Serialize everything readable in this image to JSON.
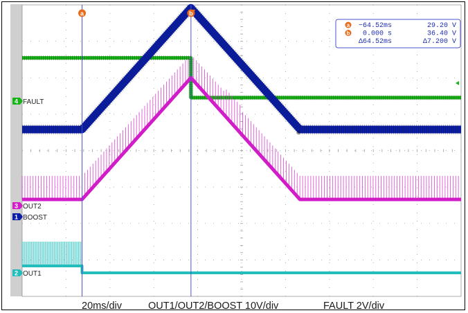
{
  "chart_data": {
    "type": "line",
    "title": "",
    "x_unit": "ms",
    "xlim": [
      -100,
      160
    ],
    "cursors": [
      {
        "marker": "a",
        "x": -64.52,
        "color": "#ea6a1c"
      },
      {
        "marker": "b",
        "x": 0.0,
        "color": "#ea6a1c"
      }
    ],
    "readout": {
      "rows": [
        {
          "marker": "a",
          "time": "−64.52ms",
          "value": "29.20 V"
        },
        {
          "marker": "b",
          "time": "0.000 s",
          "value": "36.40 V"
        },
        {
          "marker": "",
          "time": "Δ64.52ms",
          "value": "Δ7.200 V"
        }
      ]
    },
    "series": [
      {
        "name": "FAULT",
        "channel": "4",
        "color": "#17b417",
        "unit": "V",
        "x": [
          -100,
          0,
          0,
          160
        ],
        "y": [
          6.6,
          6.6,
          0,
          0
        ]
      },
      {
        "name": "BOOST",
        "channel": "1",
        "color": "#0b1ea8",
        "unit": "V",
        "x": [
          -100,
          -64.52,
          0,
          64.52,
          100,
          160
        ],
        "y": [
          29.2,
          29.2,
          36.4,
          29.2,
          29.2,
          29.2
        ]
      },
      {
        "name": "OUT2",
        "channel": "3",
        "color": "#d11dc8",
        "unit": "V",
        "x": [
          -100,
          -64.52,
          0,
          64.52,
          100,
          160
        ],
        "y": [
          29.2,
          29.2,
          36.4,
          29.2,
          29.2,
          29.2
        ]
      },
      {
        "name": "OUT1",
        "channel": "2",
        "color": "#23bdbd",
        "unit": "V",
        "x": [
          -100,
          -64.52,
          -64.52,
          160
        ],
        "y": [
          1,
          1,
          0,
          0
        ]
      }
    ],
    "channel_markers": [
      {
        "channel": "4",
        "label": "FAULT",
        "color": "#17b417"
      },
      {
        "channel": "3",
        "label": "OUT2",
        "color": "#d11dc8"
      },
      {
        "channel": "1",
        "label": "BOOST",
        "color": "#0b1ea8"
      },
      {
        "channel": "2",
        "label": "OUT1",
        "color": "#23bdbd"
      }
    ],
    "footer": {
      "timebase": "20ms/div",
      "ch123_scale": "OUT1/OUT2/BOOST 10V/div",
      "ch4_scale": "FAULT 2V/div"
    },
    "grid": true,
    "divisions": {
      "x": 10,
      "y": 8
    }
  }
}
